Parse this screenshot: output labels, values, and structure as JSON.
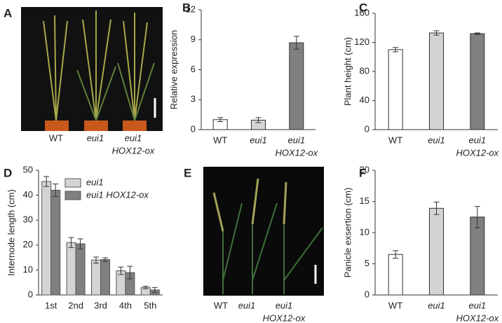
{
  "photos": [
    {
      "panel": "A",
      "labels": [
        [
          "WT"
        ],
        [
          "eui1"
        ],
        [
          "eui1",
          "HOX12-ox"
        ]
      ]
    },
    {
      "panel": "E",
      "labels": [
        [
          "WT"
        ],
        [
          "eui1"
        ],
        [
          "eui1",
          "HOX12-ox"
        ]
      ]
    }
  ],
  "chart_data": [
    {
      "type": "bar",
      "panel": "B",
      "ylabel": "Relative expression",
      "categories": [
        [
          "WT"
        ],
        [
          "eui1"
        ],
        [
          "eui1",
          "HOX12-ox"
        ]
      ],
      "values": [
        1.0,
        0.95,
        8.7
      ],
      "errors": [
        0.2,
        0.25,
        0.65
      ],
      "colors": [
        "#ffffff",
        "#d4d4d4",
        "#808080"
      ],
      "ylim": [
        0,
        12
      ],
      "yticks": [
        0,
        3,
        6,
        9,
        12
      ]
    },
    {
      "type": "bar",
      "panel": "C",
      "ylabel": "Plant height (cm)",
      "categories": [
        [
          "WT"
        ],
        [
          "eui1"
        ],
        [
          "eui1",
          "HOX12-ox"
        ]
      ],
      "values": [
        110,
        133,
        132
      ],
      "errors": [
        3,
        3,
        1
      ],
      "colors": [
        "#ffffff",
        "#d4d4d4",
        "#808080"
      ],
      "ylim": [
        0,
        160
      ],
      "yticks": [
        0,
        40,
        80,
        120,
        160
      ]
    },
    {
      "type": "grouped_bar",
      "panel": "D",
      "ylabel": "Internode length (cm)",
      "categories": [
        [
          "1st"
        ],
        [
          "2nd"
        ],
        [
          "3rd"
        ],
        [
          "4th"
        ],
        [
          "5th"
        ]
      ],
      "series": [
        {
          "name": "eui1",
          "color": "#d4d4d4",
          "values": [
            45.5,
            21,
            14,
            9.7,
            3
          ],
          "errors": [
            2,
            2,
            1.2,
            1.5,
            0.5
          ]
        },
        {
          "name": "eui1 HOX12-ox",
          "color": "#808080",
          "values": [
            42,
            20.5,
            14.2,
            9,
            2
          ],
          "errors": [
            2.5,
            2,
            0.7,
            2.5,
            1
          ]
        }
      ],
      "ylim": [
        0,
        50
      ],
      "yticks": [
        0,
        10,
        20,
        30,
        40,
        50
      ],
      "legend": "top-right"
    },
    {
      "type": "bar",
      "panel": "F",
      "ylabel": "Panicle exsertion (cm)",
      "categories": [
        [
          "WT"
        ],
        [
          "eui1"
        ],
        [
          "eui1",
          "HOX12-ox"
        ]
      ],
      "values": [
        6.5,
        13.9,
        12.5
      ],
      "errors": [
        0.6,
        1,
        1.7
      ],
      "colors": [
        "#ffffff",
        "#d4d4d4",
        "#808080"
      ],
      "ylim": [
        0,
        20
      ],
      "yticks": [
        0,
        5,
        10,
        15,
        20
      ]
    }
  ]
}
